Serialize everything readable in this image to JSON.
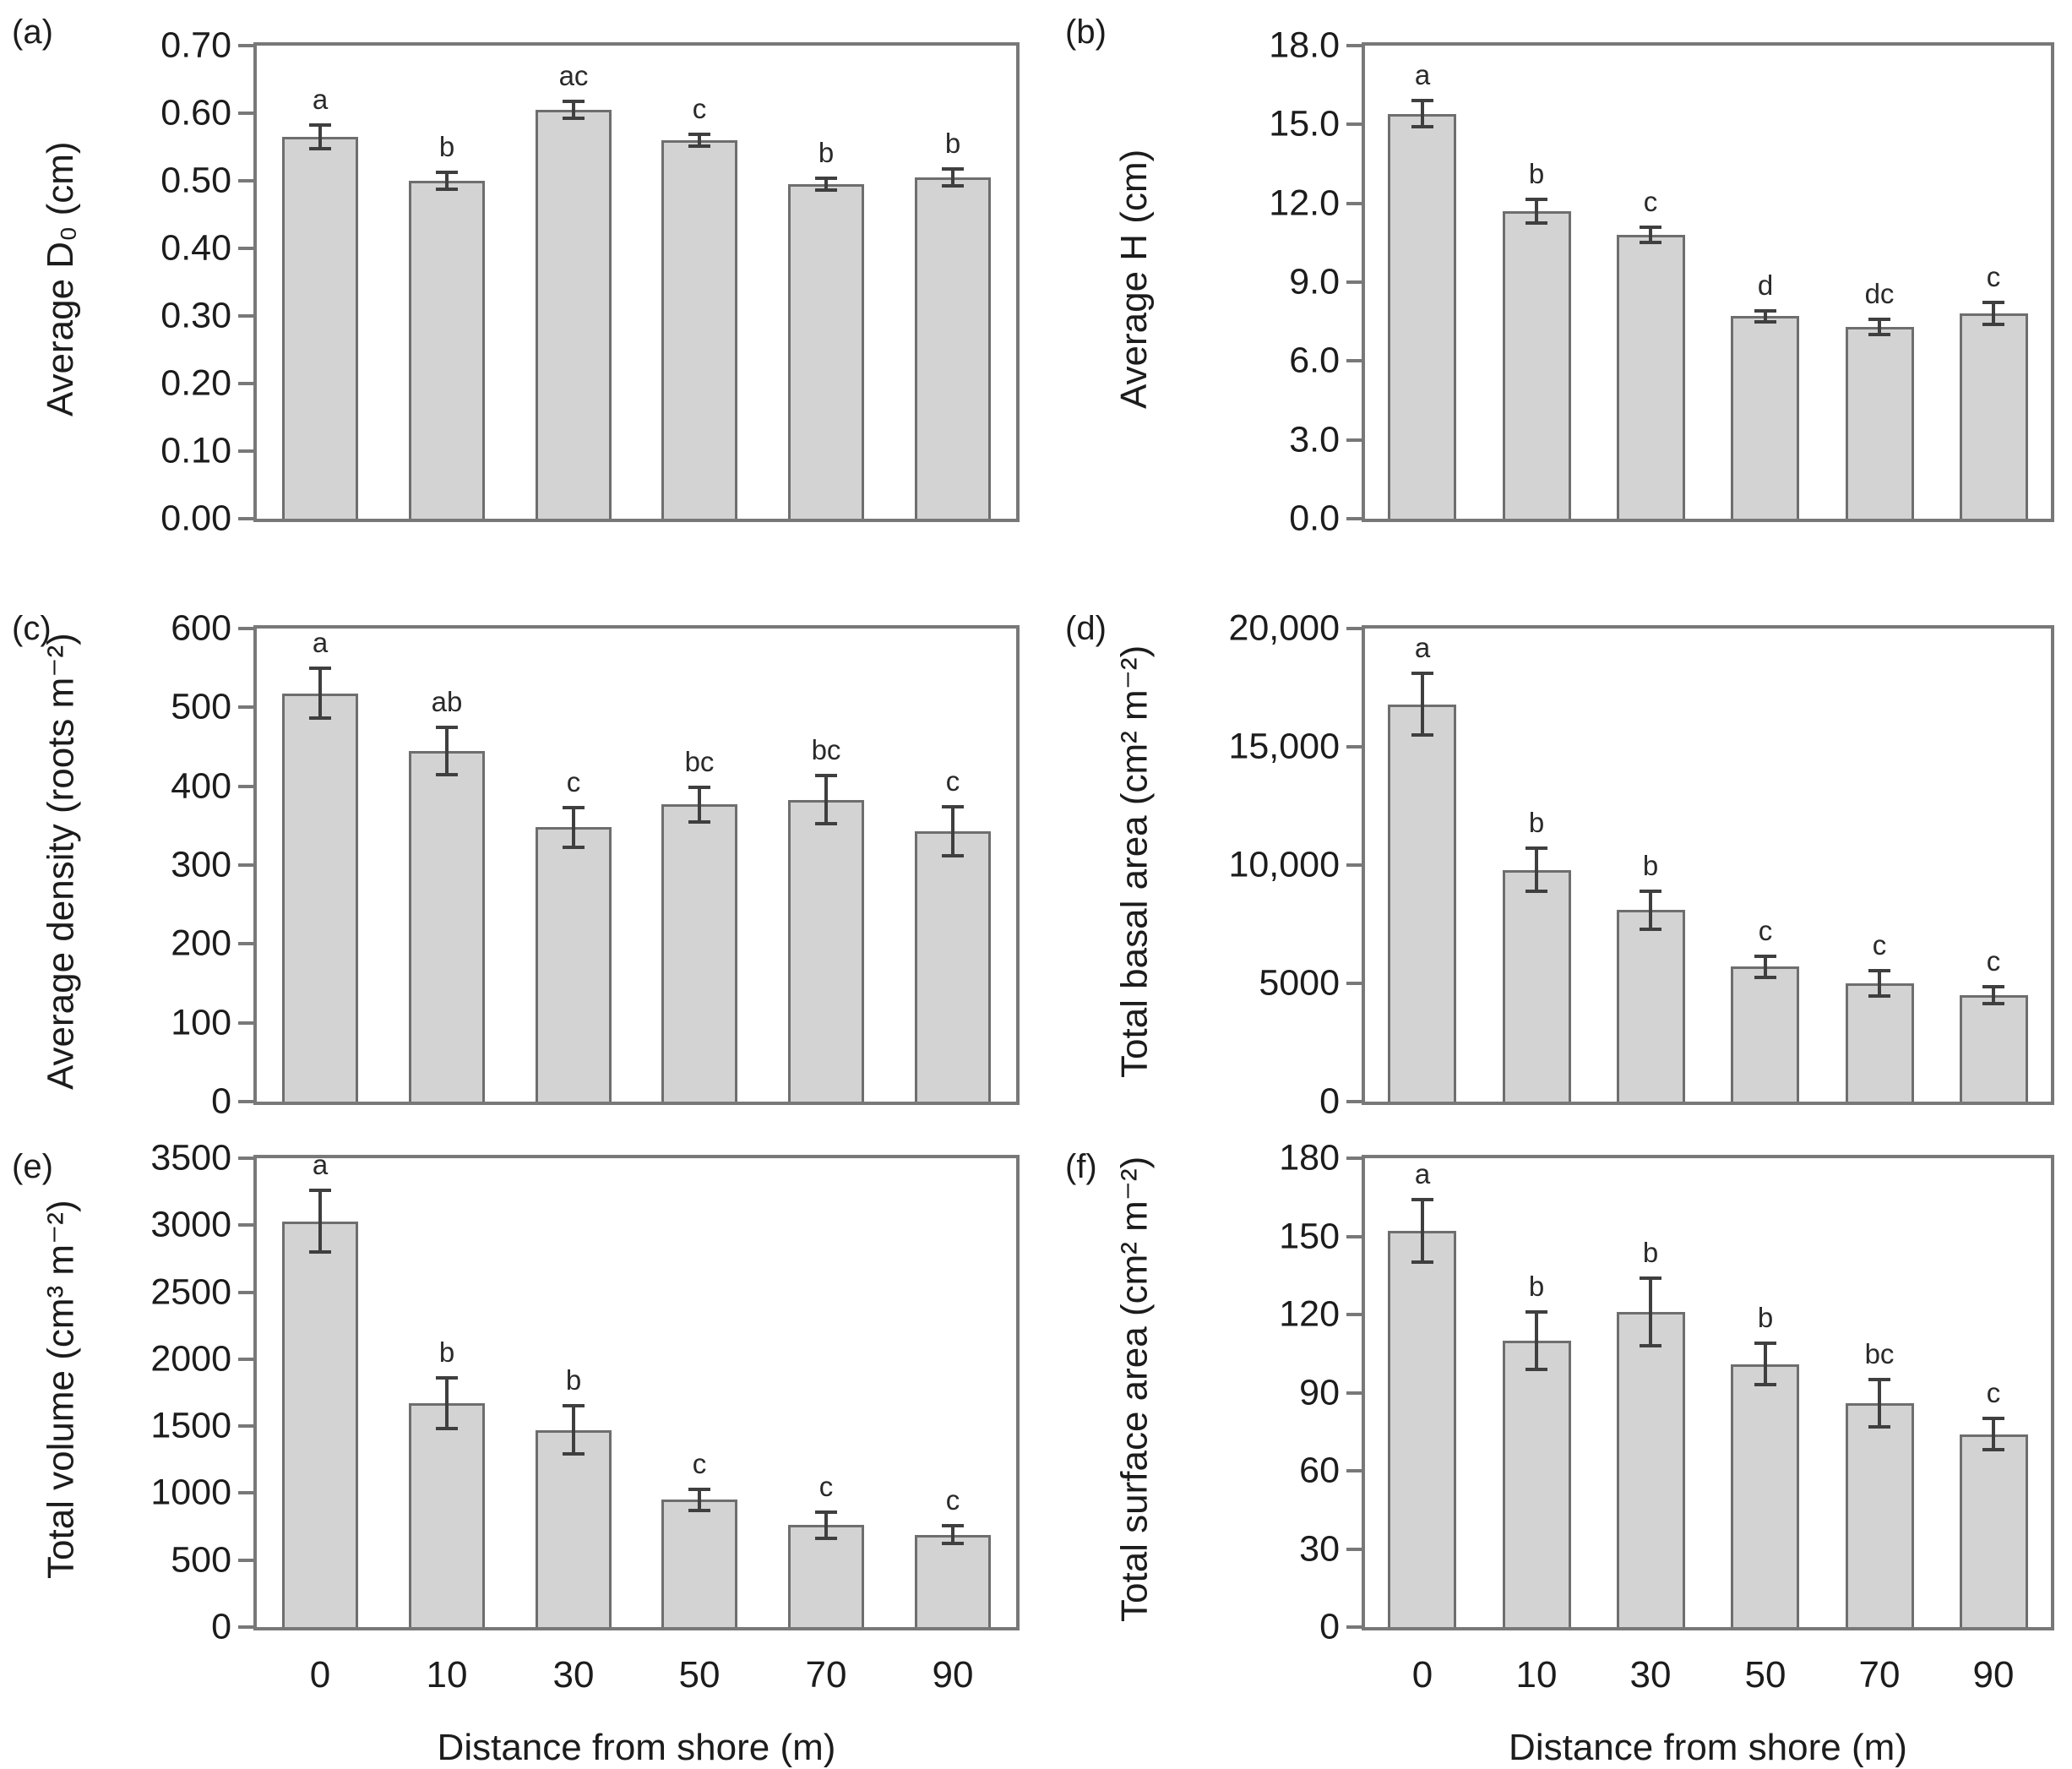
{
  "figure": {
    "xlabel": "Distance from shore (m)",
    "categories": [
      "0",
      "10",
      "30",
      "50",
      "70",
      "90"
    ],
    "colors": {
      "bar_fill": "#d3d3d3",
      "bar_border": "#6e6e6e",
      "axis_frame": "#787878",
      "error_bar": "#3f3f3f",
      "text": "#1c1c1c",
      "background": "#ffffff"
    }
  },
  "chart_data": [
    {
      "type": "bar",
      "panel": "(a)",
      "ylabel": "Average D₀ (cm)",
      "ymax": 0.7,
      "ylim": [
        0,
        0.7
      ],
      "yticks": [
        "0.70",
        "0.60",
        "0.50",
        "0.40",
        "0.30",
        "0.20",
        "0.10",
        "0.00"
      ],
      "categories": [
        "0",
        "10",
        "30",
        "50",
        "70",
        "90"
      ],
      "values": [
        0.565,
        0.5,
        0.605,
        0.56,
        0.495,
        0.505
      ],
      "errors": [
        0.018,
        0.012,
        0.013,
        0.009,
        0.009,
        0.012
      ],
      "letters": [
        "a",
        "b",
        "ac",
        "c",
        "b",
        "b"
      ],
      "show_x": false
    },
    {
      "type": "bar",
      "panel": "(b)",
      "ylabel": "Average H (cm)",
      "ymax": 18.0,
      "ylim": [
        0,
        18.0
      ],
      "yticks": [
        "18.0",
        "15.0",
        "12.0",
        "9.0",
        "6.0",
        "3.0",
        "0.0"
      ],
      "categories": [
        "0",
        "10",
        "30",
        "50",
        "70",
        "90"
      ],
      "values": [
        15.4,
        11.7,
        10.8,
        7.7,
        7.3,
        7.8
      ],
      "errors": [
        0.5,
        0.45,
        0.3,
        0.2,
        0.28,
        0.42
      ],
      "letters": [
        "a",
        "b",
        "c",
        "d",
        "dc",
        "c"
      ],
      "show_x": false
    },
    {
      "type": "bar",
      "panel": "(c)",
      "ylabel": "Average density (roots m⁻²)",
      "ymax": 600,
      "ylim": [
        0,
        600
      ],
      "yticks": [
        "600",
        "500",
        "400",
        "300",
        "200",
        "100",
        "0"
      ],
      "categories": [
        "0",
        "10",
        "30",
        "50",
        "70",
        "90"
      ],
      "values": [
        518,
        445,
        348,
        377,
        383,
        343
      ],
      "errors": [
        32,
        30,
        25,
        22,
        31,
        31
      ],
      "letters": [
        "a",
        "ab",
        "c",
        "bc",
        "bc",
        "c"
      ],
      "show_x": false
    },
    {
      "type": "bar",
      "panel": "(d)",
      "ylabel": "Total basal area (cm² m⁻²)",
      "ymax": 20000,
      "ylim": [
        0,
        20000
      ],
      "yticks": [
        "20,000",
        "15,000",
        "10,000",
        "5000",
        "0"
      ],
      "categories": [
        "0",
        "10",
        "30",
        "50",
        "70",
        "90"
      ],
      "values": [
        16800,
        9800,
        8100,
        5700,
        5000,
        4500
      ],
      "errors": [
        1300,
        900,
        800,
        450,
        550,
        350
      ],
      "letters": [
        "a",
        "b",
        "b",
        "c",
        "c",
        "c"
      ],
      "show_x": false
    },
    {
      "type": "bar",
      "panel": "(e)",
      "ylabel": "Total volume (cm³ m⁻²)",
      "ymax": 3500,
      "ylim": [
        0,
        3500
      ],
      "yticks": [
        "3500",
        "3000",
        "2500",
        "2000",
        "1500",
        "1000",
        "500",
        "0"
      ],
      "categories": [
        "0",
        "10",
        "30",
        "50",
        "70",
        "90"
      ],
      "values": [
        3030,
        1670,
        1470,
        950,
        760,
        690
      ],
      "errors": [
        230,
        190,
        180,
        80,
        95,
        65
      ],
      "letters": [
        "a",
        "b",
        "b",
        "c",
        "c",
        "c"
      ],
      "show_x": true
    },
    {
      "type": "bar",
      "panel": "(f)",
      "ylabel": "Total surface area (cm² m⁻²)",
      "ymax": 180,
      "ylim": [
        0,
        180
      ],
      "yticks": [
        "180",
        "150",
        "120",
        "90",
        "60",
        "30",
        "0"
      ],
      "categories": [
        "0",
        "10",
        "30",
        "50",
        "70",
        "90"
      ],
      "values": [
        152,
        110,
        121,
        101,
        86,
        74
      ],
      "errors": [
        12,
        11,
        13,
        8,
        9,
        6
      ],
      "letters": [
        "a",
        "b",
        "b",
        "b",
        "bc",
        "c"
      ],
      "show_x": true
    }
  ]
}
